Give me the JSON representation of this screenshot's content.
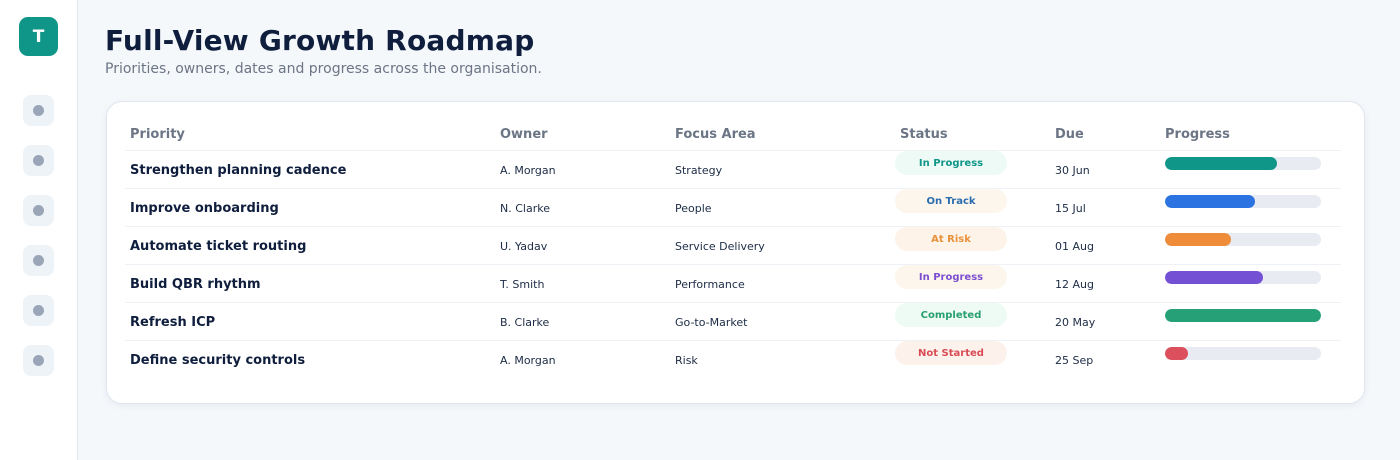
{
  "sidebar": {
    "logo_letter": "T",
    "nav_items": [
      {
        "icon": "nav-dot-icon"
      },
      {
        "icon": "nav-dot-icon"
      },
      {
        "icon": "nav-dot-icon"
      },
      {
        "icon": "nav-dot-icon"
      },
      {
        "icon": "nav-dot-icon"
      },
      {
        "icon": "nav-dot-icon"
      }
    ]
  },
  "header": {
    "title": "Full-View Growth Roadmap",
    "subtitle": "Priorities, owners, dates and progress across the organisation."
  },
  "table": {
    "columns": {
      "priority": "Priority",
      "owner": "Owner",
      "focus": "Focus Area",
      "status": "Status",
      "due": "Due",
      "progress": "Progress"
    },
    "rows": [
      {
        "priority": "Strengthen planning cadence",
        "owner": "A. Morgan",
        "focus": "Strategy",
        "status": "In Progress",
        "status_color": "#0f9688",
        "status_bg": "#eefaf6",
        "due": "30 Jun",
        "progress": 0.72,
        "progress_color": "#0f9688"
      },
      {
        "priority": "Improve onboarding",
        "owner": "N. Clarke",
        "focus": "People",
        "status": "On Track",
        "status_color": "#2b6cb0",
        "status_bg": "#fdf6ec",
        "due": "15 Jul",
        "progress": 0.58,
        "progress_color": "#2a73e0"
      },
      {
        "priority": "Automate ticket routing",
        "owner": "U. Yadav",
        "focus": "Service Delivery",
        "status": "At Risk",
        "status_color": "#e8913a",
        "status_bg": "#fdf3e8",
        "due": "01 Aug",
        "progress": 0.42,
        "progress_color": "#ef8c3a"
      },
      {
        "priority": "Build QBR rhythm",
        "owner": "T. Smith",
        "focus": "Performance",
        "status": "In Progress",
        "status_color": "#7b4fd0",
        "status_bg": "#fdf6ec",
        "due": "12 Aug",
        "progress": 0.63,
        "progress_color": "#7450d4"
      },
      {
        "priority": "Refresh ICP",
        "owner": "B. Clarke",
        "focus": "Go-to-Market",
        "status": "Completed",
        "status_color": "#27a070",
        "status_bg": "#eefaf4",
        "due": "20 May",
        "progress": 1.0,
        "progress_color": "#26a076"
      },
      {
        "priority": "Define security controls",
        "owner": "A. Morgan",
        "focus": "Risk",
        "status": "Not Started",
        "status_color": "#d94c55",
        "status_bg": "#fdf1ec",
        "due": "25 Sep",
        "progress": 0.15,
        "progress_color": "#dc4f5c"
      }
    ]
  }
}
